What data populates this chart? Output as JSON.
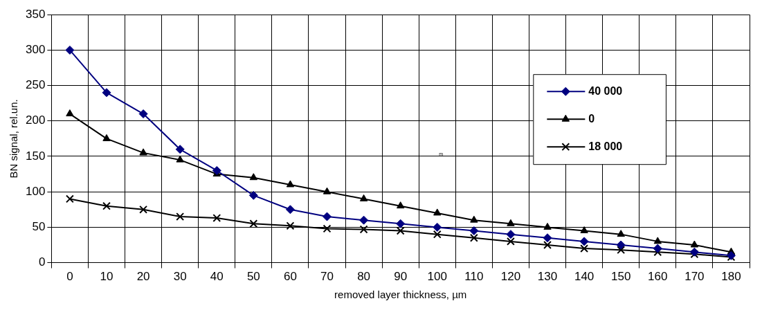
{
  "chart_data": {
    "type": "line",
    "xlabel": "removed layer thickness, µm",
    "ylabel": "BN signal, rel.un.",
    "categories": [
      "0",
      "10",
      "20",
      "30",
      "40",
      "50",
      "60",
      "70",
      "80",
      "90",
      "100",
      "110",
      "120",
      "130",
      "140",
      "150",
      "160",
      "170",
      "180"
    ],
    "series": [
      {
        "name": "40 000",
        "color": "#000080",
        "marker": "diamond",
        "values": [
          300,
          240,
          210,
          160,
          130,
          95,
          75,
          65,
          60,
          55,
          50,
          45,
          40,
          35,
          30,
          25,
          20,
          15,
          10
        ]
      },
      {
        "name": "0",
        "color": "#000000",
        "marker": "triangle",
        "values": [
          210,
          175,
          155,
          145,
          125,
          120,
          110,
          100,
          90,
          80,
          70,
          60,
          55,
          50,
          45,
          40,
          30,
          25,
          15
        ]
      },
      {
        "name": "18 000",
        "color": "#000000",
        "marker": "cross",
        "values": [
          90,
          80,
          75,
          65,
          63,
          55,
          52,
          48,
          47,
          45,
          40,
          35,
          30,
          25,
          20,
          18,
          15,
          12,
          8
        ]
      }
    ],
    "ylim": [
      0,
      350
    ],
    "yticks": [
      0,
      50,
      100,
      150,
      200,
      250,
      300,
      350
    ],
    "grid": true,
    "legend": "top right",
    "line_style": "solid",
    "annotations": [
      "m"
    ]
  }
}
